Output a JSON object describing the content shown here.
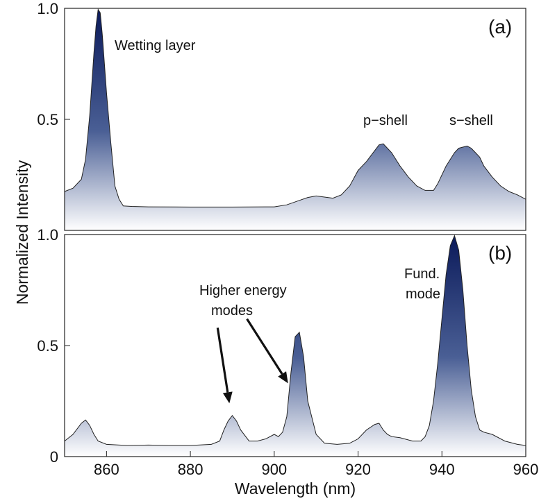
{
  "chart_data": [
    {
      "type": "area",
      "panel_label": "(a)",
      "xlim": [
        850,
        960
      ],
      "ylim": [
        0,
        1.0
      ],
      "y_ticks": [
        "1.0",
        "0.5"
      ],
      "x_ticks": [],
      "fill_color_top": "#1e2f6e",
      "fill_color_bottom": "#ffffff",
      "x": [
        850,
        852,
        854,
        855,
        856,
        857,
        857.5,
        858,
        858.5,
        859,
        860,
        861,
        862,
        863,
        864,
        866,
        870,
        880,
        890,
        900,
        903,
        906,
        908,
        910,
        912,
        914,
        916,
        918,
        920,
        922,
        924,
        925,
        926,
        927,
        928,
        929,
        930,
        932,
        934,
        936,
        938,
        939,
        940,
        941,
        942,
        943,
        944,
        945,
        946,
        947,
        948,
        949,
        950,
        952,
        954,
        956,
        958,
        960
      ],
      "y": [
        0.175,
        0.19,
        0.23,
        0.32,
        0.52,
        0.8,
        0.92,
        0.995,
        0.98,
        0.88,
        0.62,
        0.4,
        0.2,
        0.14,
        0.11,
        0.108,
        0.106,
        0.105,
        0.105,
        0.106,
        0.115,
        0.135,
        0.148,
        0.155,
        0.15,
        0.145,
        0.16,
        0.2,
        0.27,
        0.31,
        0.36,
        0.385,
        0.39,
        0.37,
        0.35,
        0.32,
        0.29,
        0.24,
        0.2,
        0.18,
        0.18,
        0.21,
        0.25,
        0.29,
        0.32,
        0.35,
        0.37,
        0.375,
        0.38,
        0.37,
        0.35,
        0.33,
        0.29,
        0.24,
        0.2,
        0.175,
        0.16,
        0.14
      ],
      "annotations": [
        {
          "text": "Wetting layer",
          "x": 862,
          "y": 0.83
        },
        {
          "text": "p−shell",
          "x": 926,
          "y": 0.48
        },
        {
          "text": "s−shell",
          "x": 946,
          "y": 0.48
        }
      ]
    },
    {
      "type": "area",
      "panel_label": "(b)",
      "xlim": [
        850,
        960
      ],
      "ylim": [
        0,
        1.0
      ],
      "y_ticks": [
        "1.0",
        "0.5",
        "0"
      ],
      "x_ticks": [
        "860",
        "880",
        "900",
        "920",
        "940",
        "960"
      ],
      "xlabel": "Wavelength (nm)",
      "fill_color_top": "#1e2f6e",
      "fill_color_bottom": "#ffffff",
      "x": [
        850,
        852,
        854,
        855,
        856,
        857,
        858,
        860,
        865,
        870,
        875,
        880,
        885,
        887,
        888,
        889,
        890,
        891,
        892,
        894,
        896,
        898,
        900,
        901,
        902,
        903,
        904,
        905,
        906,
        907,
        908,
        910,
        912,
        915,
        918,
        920,
        922,
        924,
        925,
        926,
        927,
        928,
        930,
        933,
        935,
        936,
        937,
        938,
        939,
        940,
        941,
        942,
        943,
        944,
        945,
        946,
        947,
        948,
        949,
        950,
        952,
        955,
        958,
        960
      ],
      "y": [
        0.07,
        0.1,
        0.15,
        0.165,
        0.14,
        0.1,
        0.07,
        0.055,
        0.05,
        0.052,
        0.05,
        0.05,
        0.055,
        0.07,
        0.12,
        0.16,
        0.185,
        0.16,
        0.12,
        0.07,
        0.07,
        0.08,
        0.1,
        0.09,
        0.11,
        0.18,
        0.38,
        0.54,
        0.56,
        0.45,
        0.25,
        0.1,
        0.06,
        0.055,
        0.06,
        0.08,
        0.12,
        0.145,
        0.15,
        0.12,
        0.1,
        0.09,
        0.085,
        0.07,
        0.07,
        0.09,
        0.14,
        0.25,
        0.42,
        0.62,
        0.82,
        0.95,
        0.995,
        0.93,
        0.75,
        0.5,
        0.3,
        0.18,
        0.12,
        0.11,
        0.1,
        0.07,
        0.055,
        0.05
      ],
      "annotations": [
        {
          "text": "Higher energy",
          "x": 887,
          "y": 0.74
        },
        {
          "text": "modes",
          "x": 891,
          "y": 0.65
        },
        {
          "text": "Fund.",
          "x": 938,
          "y": 0.79
        },
        {
          "text": "mode",
          "x": 939,
          "y": 0.7
        }
      ],
      "arrows": [
        {
          "from": [
            886.5,
            0.58
          ],
          "to": [
            889.3,
            0.24
          ]
        },
        {
          "from": [
            893.5,
            0.62
          ],
          "to": [
            903.3,
            0.33
          ]
        }
      ]
    }
  ],
  "ylabel": "Normalized Intensity"
}
